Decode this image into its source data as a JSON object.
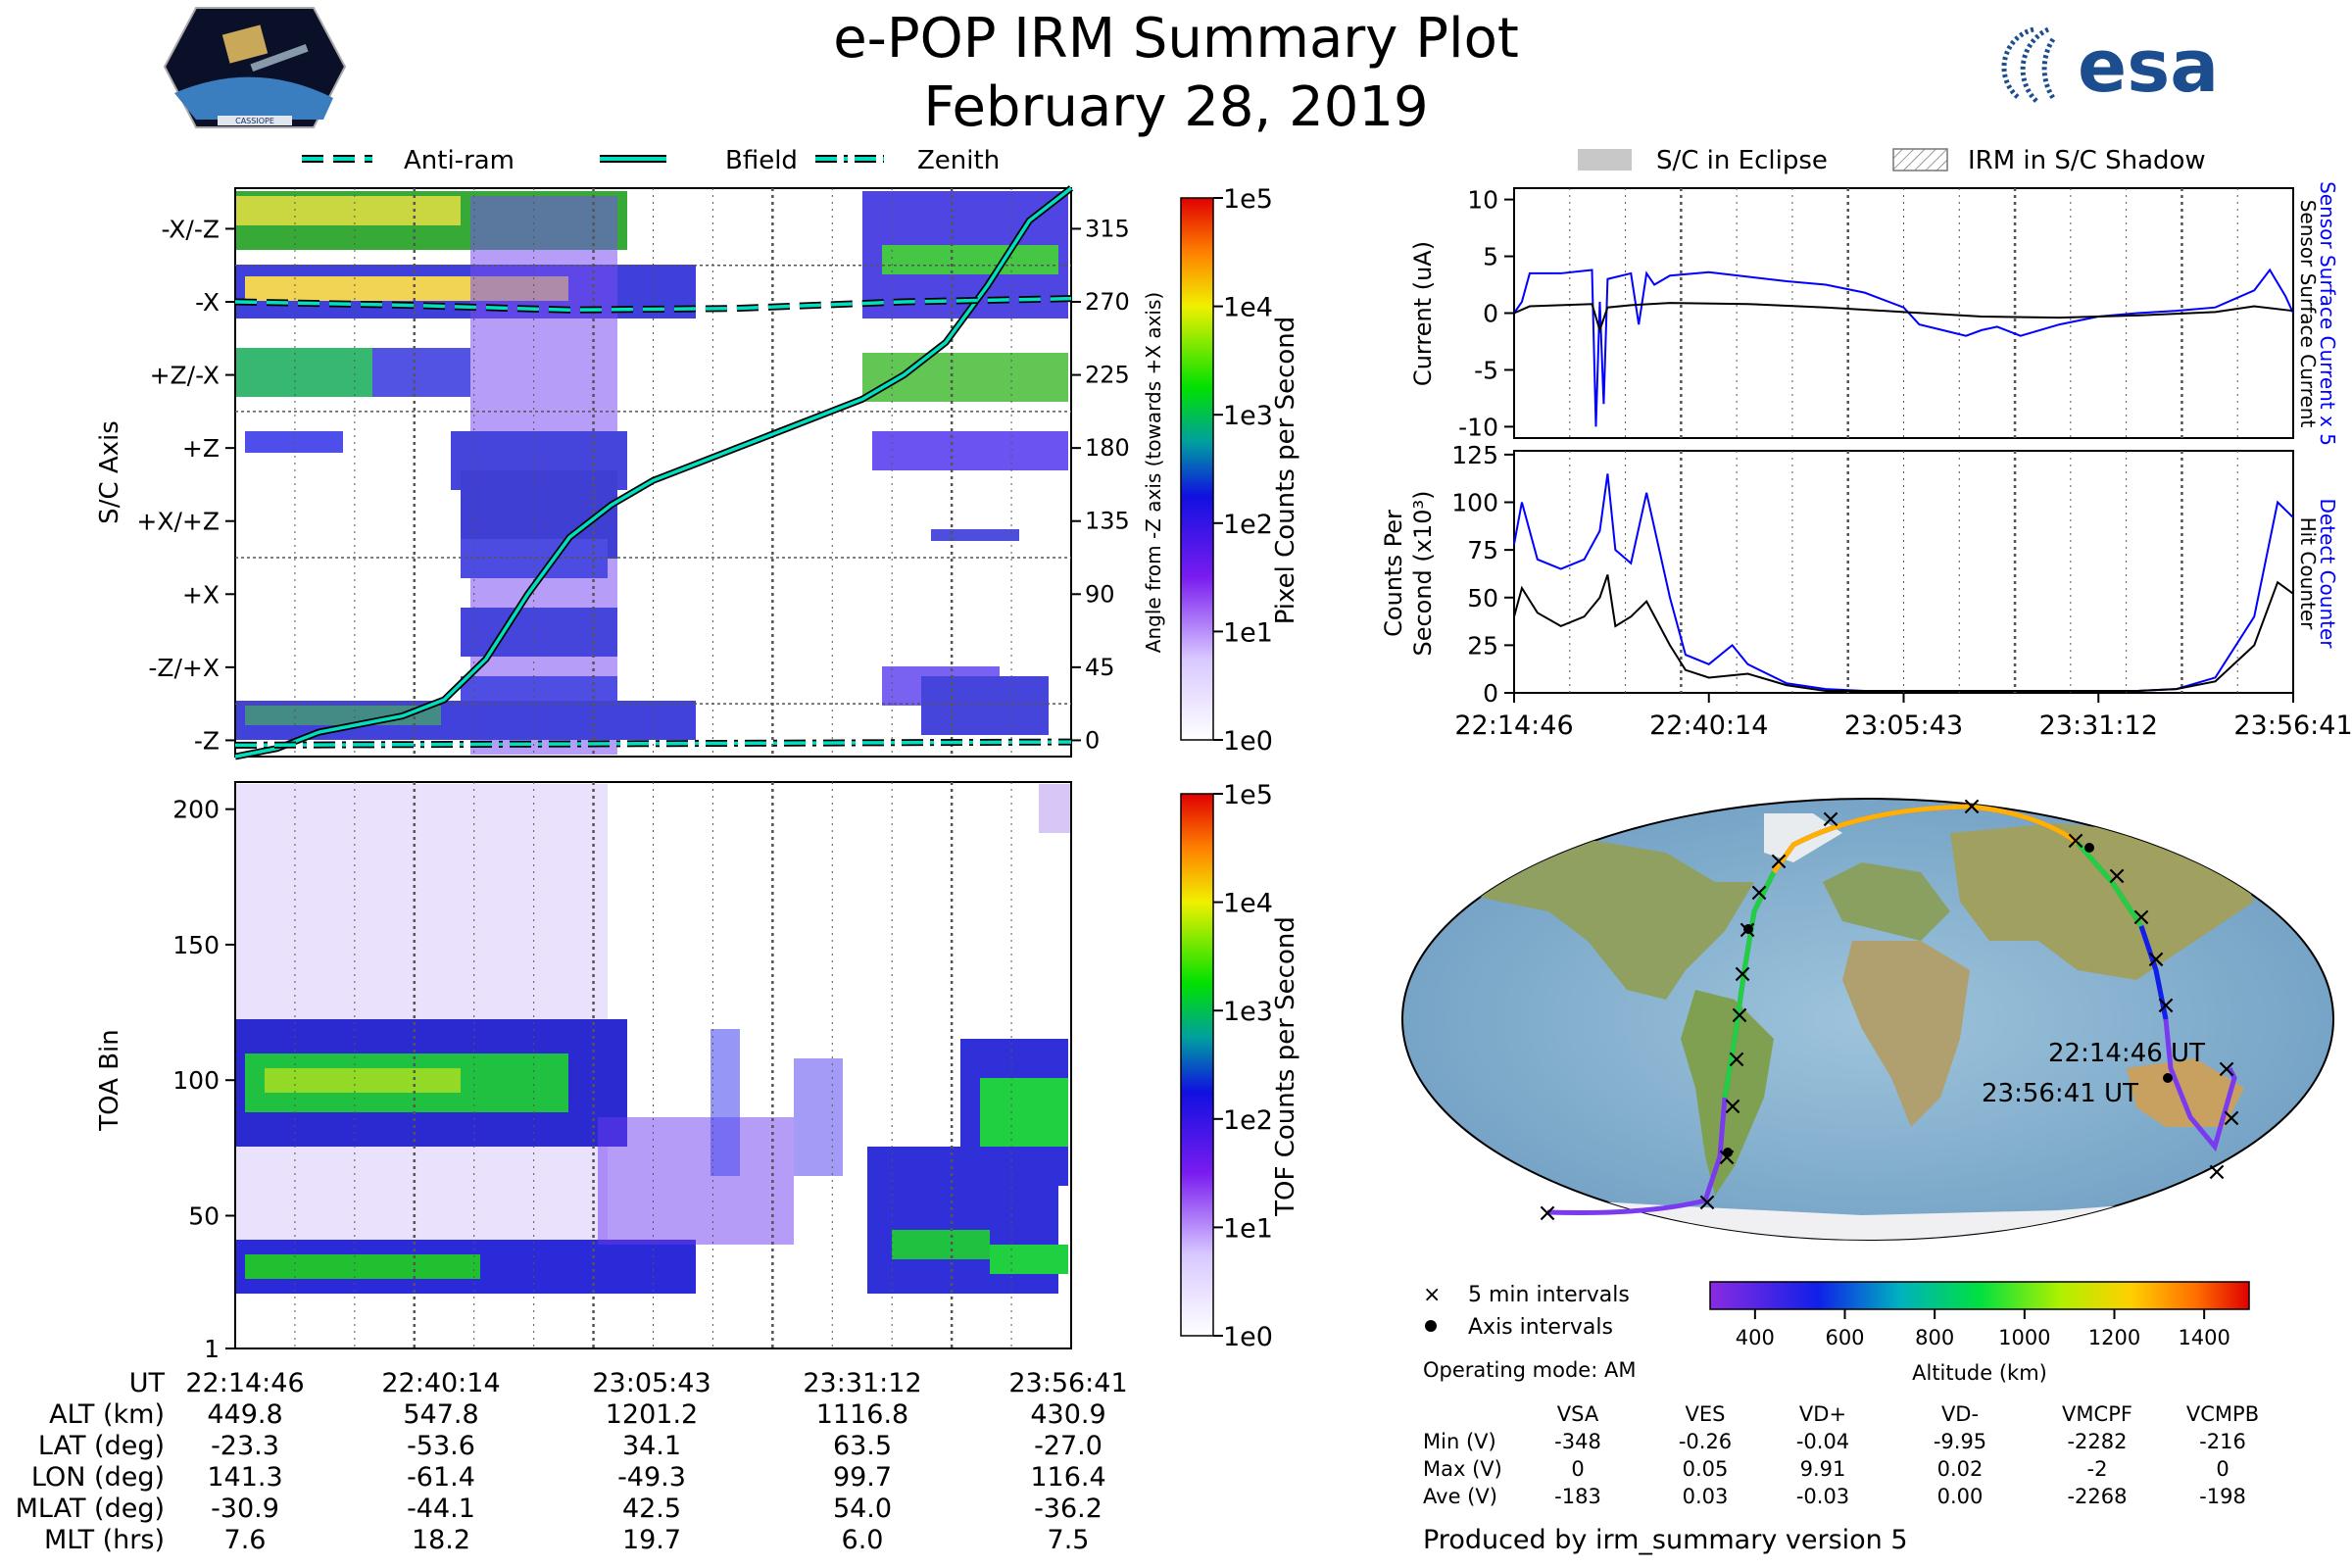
{
  "header": {
    "title": "e-POP IRM Summary Plot",
    "date": "February 28, 2019",
    "logo_left_text": "CASSIOPE",
    "logo_right_text": "esa"
  },
  "colors": {
    "axis": "#000000",
    "grid": "#555555",
    "trace_black": "#000000",
    "trace_blue": "#0000ff",
    "bfield": "#00e0c0",
    "eclipse": "#c8c8c8"
  },
  "chart_data": [
    {
      "id": "sc_axis_spectrogram",
      "type": "heatmap",
      "ylabel": "S/C Axis",
      "y_categories": [
        "-Z",
        "-Z/+X",
        "+X",
        "+X/+Z",
        "+Z",
        "+Z/-X",
        "-X",
        "-X/-Z"
      ],
      "right_axis_label": "Angle from -Z axis (towards +X axis)",
      "right_ticks": [
        0,
        45,
        90,
        135,
        180,
        225,
        270,
        315
      ],
      "ylim": [
        -10,
        340
      ],
      "legend": [
        "Anti-ram",
        "Bfield",
        "Zenith"
      ],
      "series": [
        {
          "name": "Bfield",
          "x": [
            0,
            0.05,
            0.1,
            0.2,
            0.25,
            0.3,
            0.35,
            0.4,
            0.45,
            0.5,
            0.55,
            0.6,
            0.65,
            0.7,
            0.75,
            0.8,
            0.85,
            0.9,
            0.95,
            1.0
          ],
          "values": [
            -15,
            -5,
            5,
            15,
            25,
            50,
            90,
            125,
            145,
            160,
            170,
            180,
            190,
            200,
            210,
            225,
            245,
            280,
            320,
            345
          ]
        },
        {
          "name": "Anti-ram",
          "x": [
            0,
            0.2,
            0.4,
            0.6,
            0.8,
            1.0
          ],
          "values": [
            270,
            268,
            265,
            266,
            270,
            272
          ]
        },
        {
          "name": "Zenith",
          "x": [
            0,
            0.5,
            1.0
          ],
          "values": [
            -3,
            -2,
            -1
          ]
        }
      ],
      "colorbar": {
        "label": "Pixel Counts per Second",
        "ticks": [
          "1e0",
          "1e1",
          "1e2",
          "1e3",
          "1e4",
          "1e5"
        ]
      }
    },
    {
      "id": "toa_spectrogram",
      "type": "heatmap",
      "ylabel": "TOA Bin",
      "y_ticks": [
        1,
        50,
        100,
        150,
        200
      ],
      "ylim": [
        1,
        210
      ],
      "colorbar": {
        "label": "TOF Counts per Second",
        "ticks": [
          "1e0",
          "1e1",
          "1e2",
          "1e3",
          "1e4",
          "1e5"
        ]
      }
    },
    {
      "id": "current_plot",
      "type": "line",
      "ylabel": "Current (uA)",
      "y_ticks": [
        10,
        5,
        0,
        -5,
        -10
      ],
      "ylim": [
        -11,
        11
      ],
      "right_labels": [
        "Sensor Surface Current x 5",
        "Sensor Surface Current"
      ],
      "series": [
        {
          "name": "Sensor Surface Current x 5",
          "color": "#0000ff",
          "x": [
            0,
            0.01,
            0.02,
            0.06,
            0.1,
            0.105,
            0.11,
            0.115,
            0.12,
            0.15,
            0.16,
            0.17,
            0.18,
            0.2,
            0.25,
            0.3,
            0.35,
            0.4,
            0.45,
            0.5,
            0.52,
            0.55,
            0.58,
            0.6,
            0.62,
            0.65,
            0.7,
            0.75,
            0.8,
            0.85,
            0.9,
            0.95,
            0.97,
            0.99,
            1.0
          ],
          "values": [
            0,
            1,
            3.5,
            3.5,
            3.8,
            -10,
            1,
            -8,
            3,
            3.5,
            -1,
            3.5,
            2.5,
            3.3,
            3.6,
            3.2,
            2.8,
            2.5,
            1.8,
            0.5,
            -1,
            -1.5,
            -2,
            -1.5,
            -1.2,
            -2,
            -1,
            -0.3,
            0,
            0.2,
            0.5,
            2,
            3.8,
            1.5,
            0
          ]
        },
        {
          "name": "Sensor Surface Current",
          "color": "#000000",
          "x": [
            0,
            0.02,
            0.1,
            0.11,
            0.12,
            0.15,
            0.2,
            0.3,
            0.4,
            0.5,
            0.6,
            0.7,
            0.8,
            0.9,
            0.95,
            1.0
          ],
          "values": [
            0,
            0.6,
            0.8,
            -1.5,
            0.5,
            0.7,
            0.9,
            0.8,
            0.5,
            0.1,
            -0.3,
            -0.4,
            -0.2,
            0.1,
            0.6,
            0.2
          ]
        }
      ]
    },
    {
      "id": "counts_plot",
      "type": "line",
      "ylabel": "Counts Per Second (x10^3)",
      "y_ticks": [
        0,
        25,
        50,
        75,
        100,
        125
      ],
      "ylim": [
        0,
        127
      ],
      "x_tick_labels": [
        "22:14:46",
        "22:40:14",
        "23:05:43",
        "23:31:12",
        "23:56:41"
      ],
      "right_labels": [
        "Detect Counter",
        "Hit Counter"
      ],
      "series": [
        {
          "name": "Detect Counter",
          "color": "#0000ff",
          "x": [
            0,
            0.01,
            0.03,
            0.06,
            0.09,
            0.11,
            0.12,
            0.13,
            0.15,
            0.17,
            0.2,
            0.22,
            0.25,
            0.28,
            0.3,
            0.35,
            0.4,
            0.45,
            0.5,
            0.6,
            0.7,
            0.8,
            0.85,
            0.9,
            0.95,
            0.98,
            1.0
          ],
          "values": [
            78,
            100,
            70,
            65,
            70,
            85,
            115,
            75,
            68,
            105,
            50,
            20,
            15,
            25,
            15,
            5,
            2,
            1,
            1,
            1,
            1,
            1,
            2,
            8,
            40,
            100,
            92
          ]
        },
        {
          "name": "Hit Counter",
          "color": "#000000",
          "x": [
            0,
            0.01,
            0.03,
            0.06,
            0.09,
            0.11,
            0.12,
            0.13,
            0.15,
            0.17,
            0.2,
            0.22,
            0.25,
            0.3,
            0.35,
            0.4,
            0.5,
            0.6,
            0.7,
            0.8,
            0.85,
            0.9,
            0.95,
            0.98,
            1.0
          ],
          "values": [
            40,
            55,
            42,
            35,
            40,
            50,
            62,
            35,
            40,
            48,
            25,
            12,
            8,
            10,
            4,
            1,
            1,
            1,
            1,
            1,
            2,
            6,
            25,
            58,
            52
          ]
        }
      ],
      "legend": [
        "S/C in Eclipse",
        "IRM in S/C Shadow"
      ]
    },
    {
      "id": "orbit_map",
      "type": "scatter",
      "labels": [
        "22:14:46 UT",
        "23:56:41 UT"
      ],
      "colorbar": {
        "label": "Altitude (km)",
        "ticks": [
          400,
          600,
          800,
          1000,
          1200,
          1400
        ],
        "range": [
          300,
          1500
        ]
      },
      "legend": [
        "5 min intervals",
        "Axis intervals"
      ]
    }
  ],
  "time_table": {
    "headers": [
      "UT",
      "22:14:46",
      "22:40:14",
      "23:05:43",
      "23:31:12",
      "23:56:41"
    ],
    "rows": [
      [
        "ALT (km)",
        "449.8",
        "547.8",
        "1201.2",
        "1116.8",
        "430.9"
      ],
      [
        "LAT (deg)",
        "-23.3",
        "-53.6",
        "34.1",
        "63.5",
        "-27.0"
      ],
      [
        "LON (deg)",
        "141.3",
        "-61.4",
        "-49.3",
        "99.7",
        "116.4"
      ],
      [
        "MLAT (deg)",
        "-30.9",
        "-44.1",
        "42.5",
        "54.0",
        "-36.2"
      ],
      [
        "MLT (hrs)",
        "7.6",
        "18.2",
        "19.7",
        "6.0",
        "7.5"
      ]
    ]
  },
  "operating_mode": "Operating mode: AM",
  "voltage_table": {
    "headers": [
      "",
      "VSA",
      "VES",
      "VD+",
      "VD-",
      "VMCPF",
      "VCMPB"
    ],
    "rows": [
      [
        "Min (V)",
        "-348",
        "-0.26",
        "-0.04",
        "-9.95",
        "-2282",
        "-216"
      ],
      [
        "Max (V)",
        "0",
        "0.05",
        "9.91",
        "0.02",
        "-2",
        "0"
      ],
      [
        "Ave (V)",
        "-183",
        "0.03",
        "-0.03",
        "0.00",
        "-2268",
        "-198"
      ]
    ]
  },
  "footer": "Produced by irm_summary version 5"
}
